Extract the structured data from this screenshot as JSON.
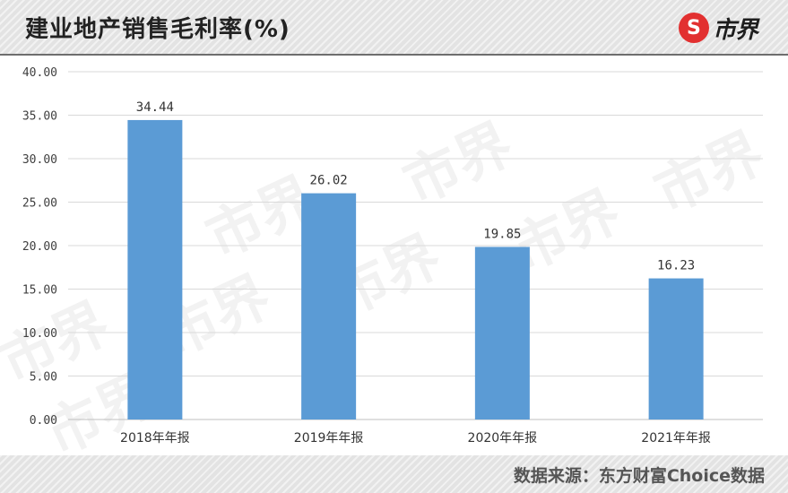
{
  "header": {
    "title": "建业地产销售毛利率(%)",
    "logo_symbol": "S",
    "logo_text": "市界"
  },
  "footer": {
    "source": "数据来源：东方财富Choice数据"
  },
  "watermark_text": "市界",
  "colors": {
    "bar": "#5b9bd5",
    "header_bg": "#e3e3e3",
    "logo_red": "#e23030",
    "grid": "#d9d9d9"
  },
  "chart_data": {
    "type": "bar",
    "categories": [
      "2018年年报",
      "2019年年报",
      "2020年年报",
      "2021年年报"
    ],
    "values": [
      34.44,
      26.02,
      19.85,
      16.23
    ],
    "value_labels": [
      "34.44",
      "26.02",
      "19.85",
      "16.23"
    ],
    "title": "建业地产销售毛利率(%)",
    "xlabel": "",
    "ylabel": "",
    "ylim": [
      0,
      40
    ],
    "yticks": [
      0,
      5,
      10,
      15,
      20,
      25,
      30,
      35,
      40
    ],
    "ytick_labels": [
      "0.00",
      "5.00",
      "10.00",
      "15.00",
      "20.00",
      "25.00",
      "30.00",
      "35.00",
      "40.00"
    ],
    "grid": true,
    "legend": "none"
  }
}
